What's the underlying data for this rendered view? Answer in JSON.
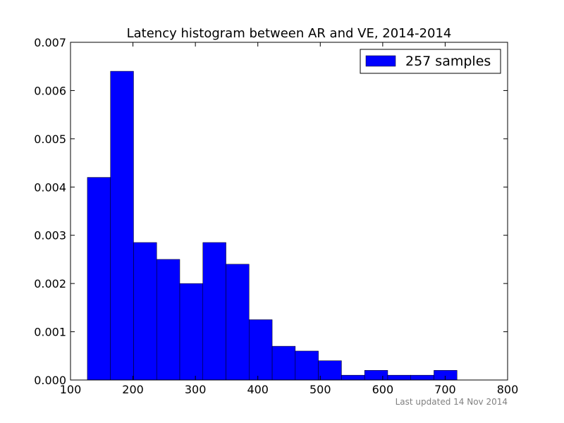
{
  "chart_data": {
    "type": "bar",
    "title": "Latency histogram between AR and VE, 2014-2014",
    "xlabel": "",
    "ylabel": "",
    "xlim": [
      100,
      800
    ],
    "ylim": [
      0,
      0.007
    ],
    "x_ticks": [
      "100",
      "200",
      "300",
      "400",
      "500",
      "600",
      "700",
      "800"
    ],
    "y_ticks": [
      "0.000",
      "0.001",
      "0.002",
      "0.003",
      "0.004",
      "0.005",
      "0.006",
      "0.007"
    ],
    "grid": false,
    "legend_position": "top-right",
    "bin_edges": [
      127,
      164,
      201,
      238,
      275,
      312,
      349,
      386,
      423,
      460,
      497,
      534,
      571,
      608,
      645,
      682,
      719
    ],
    "series": [
      {
        "name": "257 samples",
        "color": "#0000ff",
        "values": [
          0.0042,
          0.0064,
          0.00285,
          0.0025,
          0.002,
          0.00285,
          0.0024,
          0.00125,
          0.0007,
          0.0006,
          0.0004,
          0.0001,
          0.0002,
          0.0001,
          0.0001,
          0.0002
        ]
      }
    ]
  },
  "footer": {
    "note": "Last updated 14 Nov 2014"
  }
}
